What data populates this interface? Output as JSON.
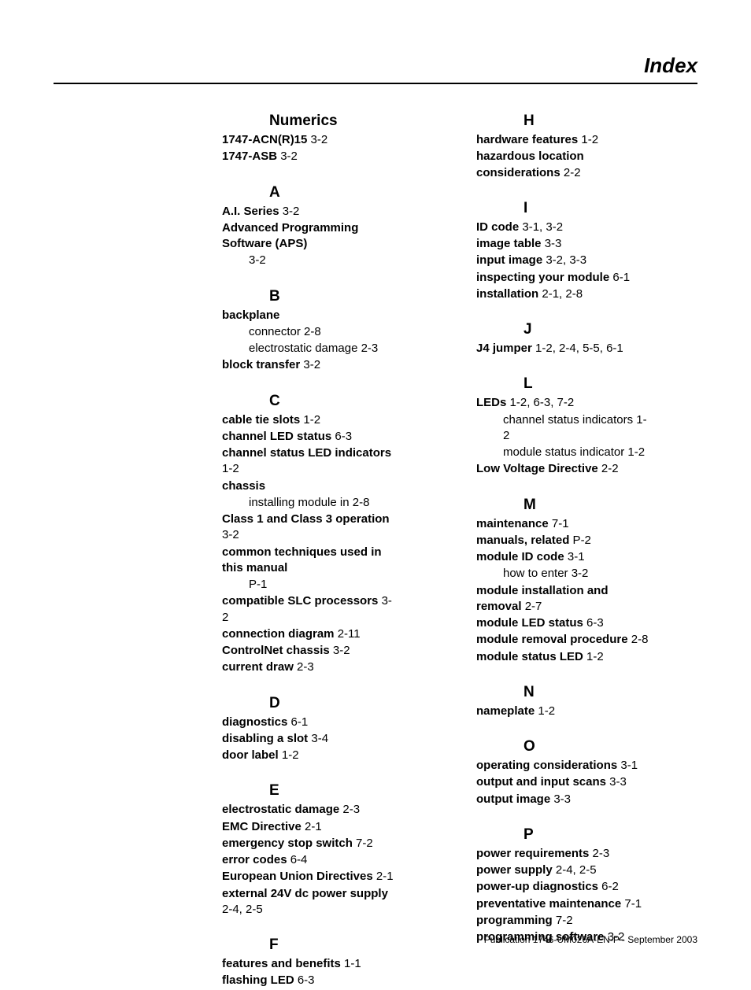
{
  "header": {
    "title": "Index"
  },
  "footer": {
    "text": "Publication 1746-UM026A-EN-P - September 2003"
  },
  "typography": {
    "heading_fontsize": 19,
    "entry_fontsize": 15,
    "footer_fontsize": 12,
    "title_fontsize": 26,
    "term_weight": "bold"
  },
  "colors": {
    "background": "#ffffff",
    "text": "#000000",
    "rule": "#000000"
  },
  "left": {
    "Numerics": {
      "heading": "Numerics",
      "entries": [
        {
          "term": "1747-ACN(R)15",
          "refs": " 3-2"
        },
        {
          "term": "1747-ASB",
          "refs": " 3-2"
        }
      ]
    },
    "A": {
      "heading": "A",
      "entries": [
        {
          "term": "A.I. Series",
          "refs": " 3-2"
        },
        {
          "term": "Advanced Programming Software (APS)",
          "refs": "",
          "subs": [
            {
              "text": "3-2"
            }
          ]
        }
      ]
    },
    "B": {
      "heading": "B",
      "entries": [
        {
          "term": "backplane",
          "refs": "",
          "subs": [
            {
              "text": "connector 2-8"
            },
            {
              "text": "electrostatic damage 2-3"
            }
          ]
        },
        {
          "term": "block transfer",
          "refs": " 3-2"
        }
      ]
    },
    "C": {
      "heading": "C",
      "entries": [
        {
          "term": "cable tie slots",
          "refs": " 1-2"
        },
        {
          "term": "channel LED status",
          "refs": " 6-3"
        },
        {
          "term": "channel status LED indicators",
          "refs": " 1-2"
        },
        {
          "term": "chassis",
          "refs": "",
          "subs": [
            {
              "text": "installing module in 2-8"
            }
          ]
        },
        {
          "term": "Class 1 and Class 3 operation",
          "refs": " 3-2"
        },
        {
          "term": "common techniques used in this manual",
          "refs": "",
          "subs": [
            {
              "text": "P-1"
            }
          ]
        },
        {
          "term": "compatible SLC processors",
          "refs": " 3-2"
        },
        {
          "term": "connection diagram",
          "refs": " 2-11"
        },
        {
          "term": "ControlNet chassis",
          "refs": " 3-2"
        },
        {
          "term": "current draw",
          "refs": " 2-3"
        }
      ]
    },
    "D": {
      "heading": "D",
      "entries": [
        {
          "term": "diagnostics",
          "refs": " 6-1"
        },
        {
          "term": "disabling a slot",
          "refs": " 3-4"
        },
        {
          "term": "door label",
          "refs": " 1-2"
        }
      ]
    },
    "E": {
      "heading": "E",
      "entries": [
        {
          "term": "electrostatic damage",
          "refs": " 2-3"
        },
        {
          "term": "EMC Directive",
          "refs": " 2-1"
        },
        {
          "term": "emergency stop switch",
          "refs": " 7-2"
        },
        {
          "term": "error codes",
          "refs": " 6-4"
        },
        {
          "term": "European Union Directives",
          "refs": " 2-1"
        },
        {
          "term": "external 24V dc power supply",
          "refs": " 2-4, 2-5"
        }
      ]
    },
    "F": {
      "heading": "F",
      "entries": [
        {
          "term": "features and benefits",
          "refs": " 1-1"
        },
        {
          "term": "flashing LED",
          "refs": " 6-3"
        }
      ]
    }
  },
  "right": {
    "H": {
      "heading": "H",
      "entries": [
        {
          "term": "hardware features",
          "refs": " 1-2"
        },
        {
          "term": "hazardous location considerations",
          "refs": " 2-2"
        }
      ]
    },
    "I": {
      "heading": "I",
      "entries": [
        {
          "term": "ID code",
          "refs": " 3-1, 3-2"
        },
        {
          "term": "image table",
          "refs": " 3-3"
        },
        {
          "term": "input image",
          "refs": " 3-2, 3-3"
        },
        {
          "term": "inspecting your module",
          "refs": " 6-1"
        },
        {
          "term": "installation",
          "refs": " 2-1, 2-8"
        }
      ]
    },
    "J": {
      "heading": "J",
      "entries": [
        {
          "term": "J4 jumper",
          "refs": " 1-2, 2-4, 5-5, 6-1"
        }
      ]
    },
    "L": {
      "heading": "L",
      "entries": [
        {
          "term": "LEDs",
          "refs": " 1-2, 6-3, 7-2",
          "subs": [
            {
              "text": "channel status indicators 1-2"
            },
            {
              "text": "module status indicator 1-2"
            }
          ]
        },
        {
          "term": "Low Voltage Directive",
          "refs": " 2-2"
        }
      ]
    },
    "M": {
      "heading": "M",
      "entries": [
        {
          "term": "maintenance",
          "refs": " 7-1"
        },
        {
          "term": "manuals, related",
          "refs": " P-2"
        },
        {
          "term": "module ID code",
          "refs": " 3-1",
          "subs": [
            {
              "text": "how to enter 3-2"
            }
          ]
        },
        {
          "term": "module installation and removal",
          "refs": " 2-7"
        },
        {
          "term": "module LED status",
          "refs": " 6-3"
        },
        {
          "term": "module removal procedure",
          "refs": " 2-8"
        },
        {
          "term": "module status LED",
          "refs": " 1-2"
        }
      ]
    },
    "N": {
      "heading": "N",
      "entries": [
        {
          "term": "nameplate",
          "refs": " 1-2"
        }
      ]
    },
    "O": {
      "heading": "O",
      "entries": [
        {
          "term": "operating considerations",
          "refs": " 3-1"
        },
        {
          "term": "output and input scans",
          "refs": " 3-3"
        },
        {
          "term": "output image",
          "refs": " 3-3"
        }
      ]
    },
    "P": {
      "heading": "P",
      "entries": [
        {
          "term": "power requirements",
          "refs": " 2-3"
        },
        {
          "term": "power supply",
          "refs": " 2-4, 2-5"
        },
        {
          "term": "power-up diagnostics",
          "refs": " 6-2"
        },
        {
          "term": "preventative maintenance",
          "refs": " 7-1"
        },
        {
          "term": "programming",
          "refs": " 7-2"
        },
        {
          "term": "programming software",
          "refs": " 3-2"
        }
      ]
    }
  }
}
